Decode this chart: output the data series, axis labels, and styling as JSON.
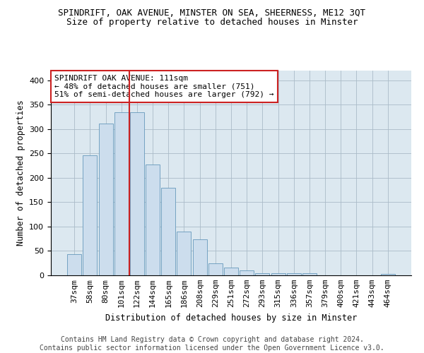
{
  "title1": "SPINDRIFT, OAK AVENUE, MINSTER ON SEA, SHEERNESS, ME12 3QT",
  "title2": "Size of property relative to detached houses in Minster",
  "xlabel": "Distribution of detached houses by size in Minster",
  "ylabel": "Number of detached properties",
  "bar_color": "#ccdded",
  "bar_edge_color": "#6699bb",
  "categories": [
    "37sqm",
    "58sqm",
    "80sqm",
    "101sqm",
    "122sqm",
    "144sqm",
    "165sqm",
    "186sqm",
    "208sqm",
    "229sqm",
    "251sqm",
    "272sqm",
    "293sqm",
    "315sqm",
    "336sqm",
    "357sqm",
    "379sqm",
    "400sqm",
    "421sqm",
    "443sqm",
    "464sqm"
  ],
  "values": [
    44,
    246,
    311,
    335,
    335,
    228,
    180,
    90,
    74,
    25,
    16,
    10,
    5,
    5,
    5,
    4,
    0,
    0,
    0,
    0,
    3
  ],
  "vline_x": 3.5,
  "vline_color": "#cc2222",
  "annotation_text": "SPINDRIFT OAK AVENUE: 111sqm\n← 48% of detached houses are smaller (751)\n51% of semi-detached houses are larger (792) →",
  "annotation_box_color": "white",
  "annotation_box_edge": "#cc2222",
  "ylim": [
    0,
    420
  ],
  "yticks": [
    0,
    50,
    100,
    150,
    200,
    250,
    300,
    350,
    400
  ],
  "grid_color": "#aabbc8",
  "background_color": "#dce8f0",
  "footer": "Contains HM Land Registry data © Crown copyright and database right 2024.\nContains public sector information licensed under the Open Government Licence v3.0.",
  "title1_fontsize": 9,
  "title2_fontsize": 9,
  "xlabel_fontsize": 8.5,
  "ylabel_fontsize": 8.5,
  "tick_fontsize": 8,
  "annot_fontsize": 8,
  "footer_fontsize": 7
}
